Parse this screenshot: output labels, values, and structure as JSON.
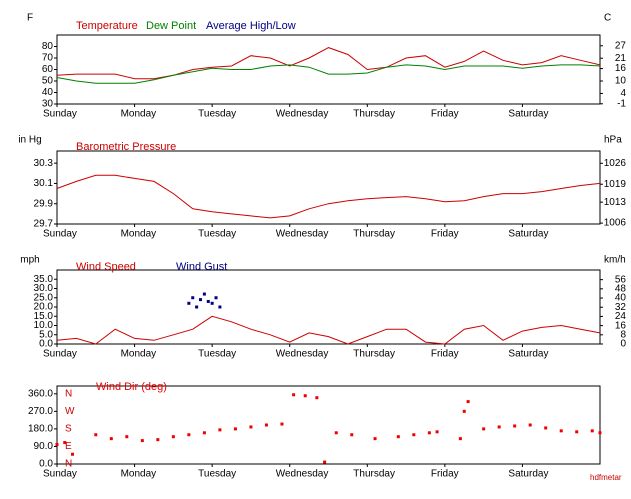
{
  "chart_data": [
    {
      "type": "line",
      "y_unit": "F",
      "y2_unit": "C",
      "x": [
        0,
        0.25,
        0.5,
        0.75,
        1,
        1.25,
        1.5,
        1.75,
        2,
        2.25,
        2.5,
        2.75,
        3,
        3.25,
        3.5,
        3.75,
        4,
        4.25,
        4.5,
        4.75,
        5,
        5.25,
        5.5,
        5.75,
        6,
        6.25,
        6.5,
        6.75,
        7
      ],
      "xlim": [
        0,
        7
      ],
      "xticks": [
        {
          "value": 0,
          "label": "Sunday"
        },
        {
          "value": 1,
          "label": "Monday"
        },
        {
          "value": 2,
          "label": "Tuesday"
        },
        {
          "value": 3,
          "label": "Wednesday"
        },
        {
          "value": 4,
          "label": "Thursday"
        },
        {
          "value": 5,
          "label": "Friday"
        },
        {
          "value": 6,
          "label": "Saturday"
        }
      ],
      "ylim": [
        30,
        90
      ],
      "yticks": [
        30,
        40,
        50,
        60,
        70,
        80
      ],
      "y2lim": [
        -1.1,
        32.2
      ],
      "y2ticks": [
        -1,
        4,
        10,
        16,
        21,
        27
      ],
      "series": [
        {
          "name": "Temperature",
          "color": "#cc0000",
          "values": [
            55,
            56,
            56,
            56,
            52,
            52,
            55,
            60,
            62,
            63,
            72,
            70,
            63,
            70,
            79,
            73,
            60,
            62,
            70,
            72,
            62,
            67,
            76,
            68,
            64,
            66,
            72,
            68,
            64
          ]
        },
        {
          "name": "Dew Point",
          "color": "#008000",
          "values": [
            53,
            50,
            48,
            48,
            48,
            51,
            55,
            58,
            61,
            60,
            60,
            63,
            64,
            62,
            56,
            56,
            57,
            62,
            64,
            63,
            60,
            63,
            63,
            63,
            61,
            63,
            64,
            64,
            63
          ]
        },
        {
          "name": "Average High/Low",
          "color": "#000080",
          "values": [
            null,
            null,
            null,
            null,
            null,
            null,
            null,
            null,
            null,
            null,
            null,
            null,
            null,
            null,
            null,
            null,
            null,
            null,
            null,
            null,
            null,
            null,
            null,
            null,
            null,
            null,
            null,
            null,
            null
          ]
        }
      ]
    },
    {
      "type": "line",
      "y_unit": "in Hg",
      "y2_unit": "hPa",
      "x": [
        0,
        0.25,
        0.5,
        0.75,
        1,
        1.25,
        1.5,
        1.75,
        2,
        2.25,
        2.5,
        2.75,
        3,
        3.25,
        3.5,
        3.75,
        4,
        4.25,
        4.5,
        4.75,
        5,
        5.25,
        5.5,
        5.75,
        6,
        6.25,
        6.5,
        6.75,
        7
      ],
      "xlim": [
        0,
        7
      ],
      "xticks": [
        {
          "value": 0,
          "label": "Sunday"
        },
        {
          "value": 1,
          "label": "Monday"
        },
        {
          "value": 2,
          "label": "Tuesday"
        },
        {
          "value": 3,
          "label": "Wednesday"
        },
        {
          "value": 4,
          "label": "Thursday"
        },
        {
          "value": 5,
          "label": "Friday"
        },
        {
          "value": 6,
          "label": "Saturday"
        }
      ],
      "ylim": [
        29.7,
        30.42
      ],
      "yticks": [
        29.7,
        29.9,
        30.1,
        30.3
      ],
      "y2lim": [
        1005.7,
        1030.1
      ],
      "y2ticks": [
        1006,
        1013,
        1019,
        1026
      ],
      "series": [
        {
          "name": "Barometric Pressure",
          "color": "#cc0000",
          "values": [
            30.05,
            30.12,
            30.18,
            30.18,
            30.15,
            30.12,
            30.0,
            29.85,
            29.82,
            29.8,
            29.78,
            29.76,
            29.78,
            29.85,
            29.9,
            29.93,
            29.95,
            29.96,
            29.97,
            29.95,
            29.92,
            29.93,
            29.97,
            30.0,
            30.0,
            30.02,
            30.05,
            30.08,
            30.1
          ]
        }
      ]
    },
    {
      "type": "line",
      "y_unit": "mph",
      "y2_unit": "km/h",
      "x": [
        0,
        0.25,
        0.5,
        0.75,
        1,
        1.25,
        1.5,
        1.75,
        2,
        2.25,
        2.5,
        2.75,
        3,
        3.25,
        3.5,
        3.75,
        4,
        4.25,
        4.5,
        4.75,
        5,
        5.25,
        5.5,
        5.75,
        6,
        6.25,
        6.5,
        6.75,
        7
      ],
      "xlim": [
        0,
        7
      ],
      "xticks": [
        {
          "value": 0,
          "label": "Sunday"
        },
        {
          "value": 1,
          "label": "Monday"
        },
        {
          "value": 2,
          "label": "Tuesday"
        },
        {
          "value": 3,
          "label": "Wednesday"
        },
        {
          "value": 4,
          "label": "Thursday"
        },
        {
          "value": 5,
          "label": "Friday"
        },
        {
          "value": 6,
          "label": "Saturday"
        }
      ],
      "ylim": [
        0,
        40
      ],
      "yticks": [
        {
          "value": 0,
          "label": "0.0"
        },
        {
          "value": 5,
          "label": "5.0"
        },
        {
          "value": 10,
          "label": "10.0"
        },
        {
          "value": 15,
          "label": "15.0"
        },
        {
          "value": 20,
          "label": "20.0"
        },
        {
          "value": 25,
          "label": "25.0"
        },
        {
          "value": 30,
          "label": "30.0"
        },
        {
          "value": 35,
          "label": "35.0"
        }
      ],
      "y2lim": [
        0,
        64.4
      ],
      "y2ticks": [
        0,
        8,
        16,
        24,
        32,
        40,
        48,
        56
      ],
      "series": [
        {
          "name": "Wind Speed",
          "color": "#cc0000",
          "values": [
            2,
            3,
            0,
            8,
            3,
            2,
            5,
            8,
            15,
            12,
            8,
            5,
            1,
            6,
            4,
            0,
            4,
            8,
            8,
            1,
            0,
            8,
            10,
            2,
            7,
            9,
            10,
            8,
            6
          ]
        },
        {
          "name": "Wind Gust",
          "color": "#000080",
          "marker": "square",
          "x": [
            1.7,
            1.75,
            1.8,
            1.85,
            1.9,
            1.95,
            2.0,
            2.05,
            2.1
          ],
          "values": [
            22,
            25,
            20,
            24,
            27,
            23,
            22,
            25,
            20
          ]
        }
      ]
    },
    {
      "type": "scatter",
      "title": "Wind Dir (deg)",
      "color": "#ee0000",
      "x": [
        0,
        0.1,
        0.2,
        0.5,
        0.7,
        0.9,
        1.1,
        1.3,
        1.5,
        1.7,
        1.9,
        2.1,
        2.3,
        2.5,
        2.7,
        2.9,
        3.05,
        3.2,
        3.35,
        3.45,
        3.6,
        3.8,
        4.1,
        4.4,
        4.6,
        4.8,
        4.9,
        5.2,
        5.25,
        5.3,
        5.5,
        5.7,
        5.9,
        6.1,
        6.3,
        6.5,
        6.7,
        6.9,
        7
      ],
      "values": [
        100,
        110,
        50,
        150,
        130,
        140,
        120,
        125,
        140,
        150,
        160,
        175,
        180,
        190,
        200,
        205,
        355,
        350,
        340,
        10,
        160,
        150,
        130,
        140,
        150,
        160,
        165,
        130,
        270,
        320,
        180,
        190,
        195,
        200,
        185,
        170,
        165,
        170,
        160
      ],
      "xlim": [
        0,
        7
      ],
      "xticks": [
        {
          "value": 0,
          "label": "Sunday"
        },
        {
          "value": 1,
          "label": "Monday"
        },
        {
          "value": 2,
          "label": "Tuesday"
        },
        {
          "value": 3,
          "label": "Wednesday"
        },
        {
          "value": 4,
          "label": "Thursday"
        },
        {
          "value": 5,
          "label": "Friday"
        },
        {
          "value": 6,
          "label": "Saturday"
        }
      ],
      "ylim": [
        0,
        400
      ],
      "yticks": [
        {
          "value": 0,
          "label": "0.0"
        },
        {
          "value": 90,
          "label": "90.0"
        },
        {
          "value": 180,
          "label": "180.0"
        },
        {
          "value": 270,
          "label": "270.0"
        },
        {
          "value": 360,
          "label": "360.0"
        }
      ],
      "compass_ticks": [
        {
          "value": 0,
          "label": "N"
        },
        {
          "value": 90,
          "label": "E"
        },
        {
          "value": 180,
          "label": "S"
        },
        {
          "value": 270,
          "label": "W"
        },
        {
          "value": 360,
          "label": "N"
        }
      ]
    }
  ],
  "credit": "hdfmetar"
}
